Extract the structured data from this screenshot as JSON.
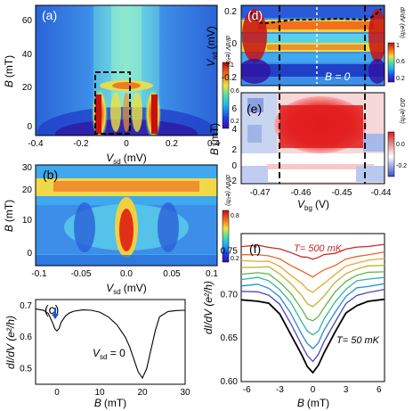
{
  "panels": {
    "a": {
      "label": "(a)",
      "ylabel": "B",
      "yunit": "(mT)",
      "xlabel": "V",
      "xsub": "sd",
      "xunit": "(mV)",
      "xticks": [
        "-0.4",
        "-0.2",
        "0",
        "0.2",
        "0.4"
      ],
      "yticks": [
        "0",
        "20",
        "40",
        "60"
      ],
      "cbar_label": "dI/dV (e²/h)",
      "cbar_ticks": [
        "1",
        "0.6",
        "0.2"
      ]
    },
    "b": {
      "label": "(b)",
      "ylabel": "B",
      "yunit": "(mT)",
      "xlabel": "V",
      "xsub": "sd",
      "xunit": "(mV)",
      "xticks": [
        "-0.1",
        "-0.05",
        "0.0",
        "0.05",
        "0.1"
      ],
      "yticks": [
        "0",
        "10",
        "20",
        "30"
      ],
      "cbar_label": "dI/dV (e²/h)",
      "cbar_ticks": [
        "0.8",
        "0.2"
      ]
    },
    "c": {
      "label": "(c)",
      "ylabel": "dI/dV (e²/h)",
      "xlabel": "B",
      "xunit": "(mT)",
      "xticks": [
        "0",
        "10",
        "20",
        "30"
      ],
      "yticks": [
        "0.5",
        "0.6",
        "0.7"
      ],
      "annotation_var": "V",
      "annotation_sub": "sd",
      "annotation_val": " = 0",
      "arrow_color": "#1f4fd1"
    },
    "d": {
      "label": "(d)",
      "ylabel": "V",
      "ysub": "sd",
      "yunit": "(mV)",
      "yticks": [
        "0.2",
        "0",
        "-0.2"
      ],
      "annotation": "B = 0",
      "cbar_label": "dI/dV (e²/h)",
      "cbar_ticks": [
        "1",
        "0.6",
        "0.2"
      ]
    },
    "e": {
      "label": "(e)",
      "ylabel": "B",
      "yunit": "(mT)",
      "xlabel": "V",
      "xsub": "bg",
      "xunit": "(V)",
      "xticks": [
        "-0.47",
        "-0.46",
        "-0.45",
        "-0.44"
      ],
      "yticks": [
        "6",
        "4",
        "2",
        "0",
        "-2"
      ],
      "cbar_label": "ΔG (e²/h)",
      "cbar_ticks": [
        "0.0",
        "-0.2"
      ]
    },
    "f": {
      "label": "(f)",
      "ylabel": "dI/dV (e²/h)",
      "xlabel": "B",
      "xunit": "(mT)",
      "xticks": [
        "-6",
        "-3",
        "0",
        "3",
        "6"
      ],
      "yticks": [
        "0.60",
        "0.65",
        "0.70",
        "0.75"
      ],
      "label_hot": "T= 500 mK",
      "label_cold": "T= 50 mK",
      "hot_color": "#c8282a"
    }
  },
  "chart_data": [
    {
      "type": "line",
      "panel": "c",
      "xlabel": "B (mT)",
      "ylabel": "dI/dV (e²/h)",
      "xlim": [
        -5,
        30
      ],
      "ylim": [
        0.45,
        0.72
      ],
      "series": [
        {
          "x": [
            -5,
            -4,
            -3,
            -2,
            -1,
            -0.5,
            0,
            0.5,
            1,
            2,
            3,
            4,
            6,
            8,
            10,
            12,
            14,
            16,
            17,
            18,
            19,
            20,
            21,
            22,
            23,
            24,
            26,
            28,
            30
          ],
          "values": [
            0.69,
            0.688,
            0.685,
            0.675,
            0.645,
            0.627,
            0.62,
            0.628,
            0.648,
            0.668,
            0.678,
            0.683,
            0.687,
            0.686,
            0.68,
            0.665,
            0.64,
            0.6,
            0.57,
            0.53,
            0.49,
            0.47,
            0.5,
            0.56,
            0.62,
            0.665,
            0.682,
            0.685,
            0.686
          ]
        }
      ]
    },
    {
      "type": "line",
      "panel": "f",
      "xlabel": "B (mT)",
      "ylabel": "dI/dV (e²/h)",
      "xlim": [
        -6.5,
        6.5
      ],
      "ylim": [
        0.6,
        0.77
      ],
      "series": [
        {
          "x": [
            -6.5,
            -5,
            -4,
            -3,
            -2,
            -1,
            -0.5,
            0,
            0.5,
            1,
            2,
            3,
            4,
            5,
            6.5
          ],
          "values": [
            0.755,
            0.756,
            0.755,
            0.752,
            0.748,
            0.744,
            0.742,
            0.741,
            0.743,
            0.745,
            0.748,
            0.752,
            0.754,
            0.756,
            0.757
          ]
        },
        {
          "x": [
            -6.5,
            -5,
            -4,
            -3,
            -2,
            -1,
            -0.5,
            0,
            0.5,
            1,
            2,
            3,
            4,
            5,
            6.5
          ],
          "values": [
            0.745,
            0.746,
            0.745,
            0.74,
            0.734,
            0.727,
            0.723,
            0.721,
            0.724,
            0.728,
            0.734,
            0.74,
            0.744,
            0.746,
            0.748
          ]
        },
        {
          "x": [
            -6.5,
            -5,
            -4,
            -3,
            -2,
            -1,
            -0.5,
            0,
            0.5,
            1,
            2,
            3,
            4,
            5,
            6.5
          ],
          "values": [
            0.738,
            0.739,
            0.738,
            0.732,
            0.723,
            0.712,
            0.706,
            0.703,
            0.707,
            0.713,
            0.723,
            0.732,
            0.737,
            0.739,
            0.741
          ]
        },
        {
          "x": [
            -6.5,
            -5,
            -4,
            -3,
            -2,
            -1,
            -0.5,
            0,
            0.5,
            1,
            2,
            3,
            4,
            5,
            6.5
          ],
          "values": [
            0.731,
            0.732,
            0.731,
            0.724,
            0.713,
            0.698,
            0.69,
            0.686,
            0.691,
            0.699,
            0.713,
            0.724,
            0.73,
            0.732,
            0.734
          ]
        },
        {
          "x": [
            -6.5,
            -5,
            -4,
            -3,
            -2,
            -1,
            -0.5,
            0,
            0.5,
            1,
            2,
            3,
            4,
            5,
            6.5
          ],
          "values": [
            0.724,
            0.725,
            0.723,
            0.715,
            0.701,
            0.683,
            0.673,
            0.669,
            0.675,
            0.685,
            0.702,
            0.716,
            0.722,
            0.725,
            0.727
          ]
        },
        {
          "x": [
            -6.5,
            -5,
            -4,
            -3,
            -2,
            -1,
            -0.5,
            0,
            0.5,
            1,
            2,
            3,
            4,
            5,
            6.5
          ],
          "values": [
            0.718,
            0.719,
            0.716,
            0.706,
            0.69,
            0.669,
            0.658,
            0.653,
            0.659,
            0.671,
            0.691,
            0.707,
            0.715,
            0.718,
            0.72
          ]
        },
        {
          "x": [
            -6.5,
            -5,
            -4,
            -3,
            -2,
            -1,
            -0.5,
            0,
            0.5,
            1,
            2,
            3,
            4,
            5,
            6.5
          ],
          "values": [
            0.71,
            0.711,
            0.708,
            0.697,
            0.678,
            0.655,
            0.643,
            0.638,
            0.645,
            0.658,
            0.68,
            0.698,
            0.707,
            0.71,
            0.712
          ]
        },
        {
          "x": [
            -6.5,
            -5,
            -4,
            -3,
            -2,
            -1,
            -0.5,
            0,
            0.5,
            1,
            2,
            3,
            4,
            5,
            6.5
          ],
          "values": [
            0.703,
            0.703,
            0.7,
            0.688,
            0.667,
            0.642,
            0.629,
            0.624,
            0.631,
            0.645,
            0.669,
            0.689,
            0.699,
            0.703,
            0.705
          ]
        },
        {
          "x": [
            -6.5,
            -5,
            -4,
            -3,
            -2,
            -1,
            -0.5,
            0,
            0.5,
            1,
            2,
            3,
            4,
            5,
            6.5
          ],
          "values": [
            0.693,
            0.693,
            0.69,
            0.677,
            0.655,
            0.63,
            0.617,
            0.611,
            0.618,
            0.633,
            0.657,
            0.678,
            0.688,
            0.692,
            0.694
          ]
        }
      ]
    }
  ]
}
